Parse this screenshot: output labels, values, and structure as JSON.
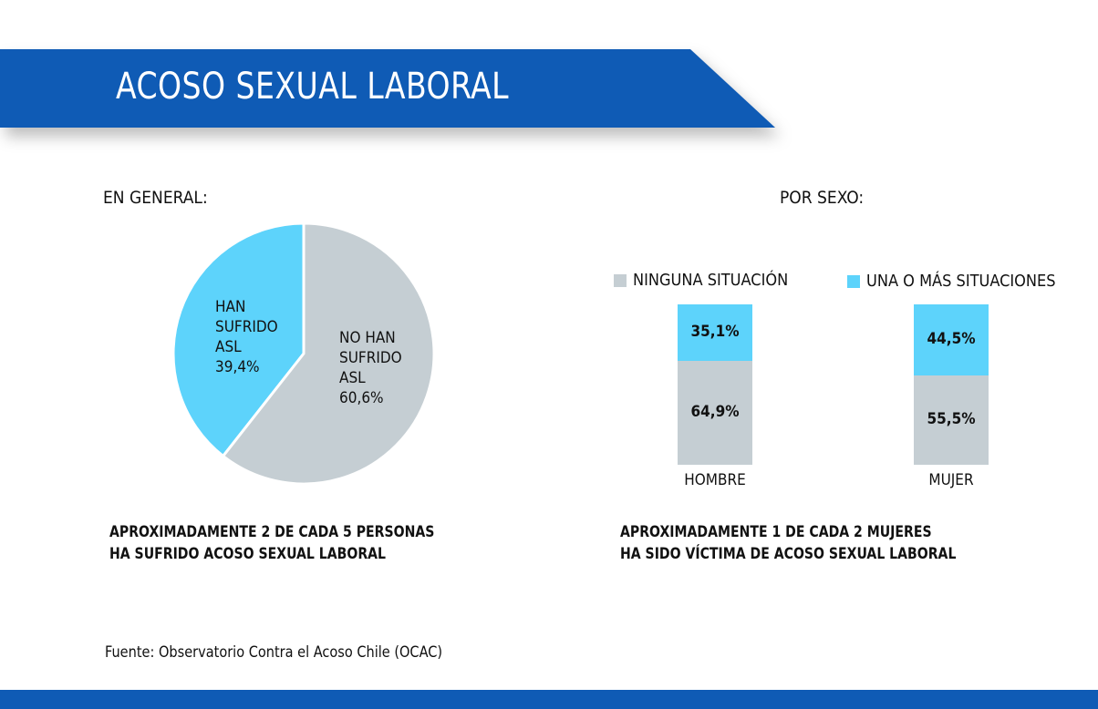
{
  "header": {
    "title": "ACOSO SEXUAL LABORAL"
  },
  "colors": {
    "brand": "#0f5bb5",
    "cyan": "#5dd3fb",
    "gray": "#c5ced3"
  },
  "chart_data": [
    {
      "type": "pie",
      "title": "EN GENERAL:",
      "slices": [
        {
          "label_lines": [
            "HAN",
            "SUFRIDO",
            "ASL",
            "39,4%"
          ],
          "value": 39.4,
          "color": "#5dd3fb"
        },
        {
          "label_lines": [
            "NO HAN",
            "SUFRIDO",
            "ASL",
            "60,6%"
          ],
          "value": 60.6,
          "color": "#c5ced3"
        }
      ],
      "caption": [
        "APROXIMADAMENTE 2 DE CADA 5 PERSONAS",
        "HA SUFRIDO ACOSO SEXUAL LABORAL"
      ]
    },
    {
      "type": "bar",
      "stacked": true,
      "title": "POR SEXO:",
      "categories": [
        "HOMBRE",
        "MUJER"
      ],
      "legend": [
        "NINGUNA SITUACIÓN",
        "UNA O MÁS SITUACIONES"
      ],
      "series": [
        {
          "name": "NINGUNA SITUACIÓN",
          "values": [
            64.9,
            55.5
          ],
          "labels": [
            "64,9%",
            "55,5%"
          ],
          "color": "#c5ced3"
        },
        {
          "name": "UNA O MÁS SITUACIONES",
          "values": [
            35.1,
            44.5
          ],
          "labels": [
            "35,1%",
            "44,5%"
          ],
          "color": "#5dd3fb"
        }
      ],
      "ylim": [
        0,
        100
      ],
      "caption": [
        "APROXIMADAMENTE 1 DE CADA 2 MUJERES",
        "HA SIDO VÍCTIMA DE ACOSO SEXUAL LABORAL"
      ]
    }
  ],
  "source": "Fuente: Observatorio Contra el Acoso Chile (OCAC)"
}
